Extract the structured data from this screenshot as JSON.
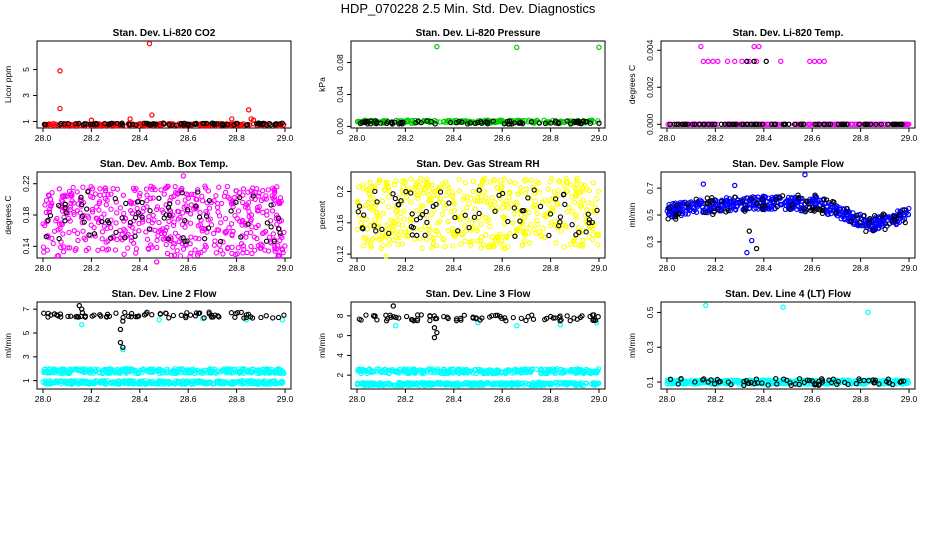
{
  "figure": {
    "title": "HDP_070228  2.5 Min. Std. Dev. Diagnostics"
  },
  "chart_data": [
    {
      "type": "scatter",
      "title": "Stan. Dev. Li-820 CO2",
      "ylabel": "Licor ppm",
      "xlim": [
        28.0,
        29.0
      ],
      "ylim": [
        0.5,
        7.2
      ],
      "xticks": [
        "28.0",
        "28.2",
        "28.4",
        "28.6",
        "28.8",
        "29.0"
      ],
      "yticks": [
        1,
        3,
        5
      ],
      "series": [
        {
          "name": "a",
          "color": "#ff0000",
          "base": 0.75,
          "spread": 0.1,
          "n": 230,
          "extra": [
            [
              28.07,
              4.9
            ],
            [
              28.07,
              2.0
            ],
            [
              28.44,
              7.0
            ],
            [
              28.45,
              1.5
            ],
            [
              28.2,
              1.1
            ],
            [
              28.36,
              1.2
            ],
            [
              28.78,
              1.2
            ],
            [
              28.85,
              1.9
            ],
            [
              28.86,
              1.2
            ],
            [
              28.87,
              1.1
            ]
          ]
        },
        {
          "name": "b",
          "color": "#000000",
          "base": 0.8,
          "spread": 0.08,
          "n": 90,
          "extra": []
        }
      ]
    },
    {
      "type": "scatter",
      "title": "Stan. Dev. Li-820 Pressure",
      "ylabel": "kPa",
      "xlim": [
        28.0,
        29.0
      ],
      "ylim": [
        -0.002,
        0.107
      ],
      "xticks": [
        "28.0",
        "28.2",
        "28.4",
        "28.6",
        "28.8",
        "29.0"
      ],
      "yticks": [
        0.0,
        0.04,
        0.08
      ],
      "series": [
        {
          "name": "a",
          "color": "#00cc00",
          "base": 0.006,
          "spread": 0.002,
          "n": 240,
          "extra": [
            [
              28.33,
              0.1
            ],
            [
              28.66,
              0.099
            ],
            [
              29.0,
              0.099
            ]
          ]
        },
        {
          "name": "b",
          "color": "#000000",
          "base": 0.005,
          "spread": 0.002,
          "n": 80,
          "extra": [
            [
              29.0,
              0.004
            ]
          ]
        }
      ]
    },
    {
      "type": "scatter",
      "title": "Stan. Dev. Li-820 Temp.",
      "ylabel": "degrees C",
      "xlim": [
        28.0,
        29.0
      ],
      "ylim": [
        -0.0002,
        0.0045
      ],
      "xticks": [
        "28.0",
        "28.2",
        "28.4",
        "28.6",
        "28.8",
        "29.0"
      ],
      "yticks": [
        0.0,
        0.002,
        0.004
      ],
      "series": [
        {
          "name": "a",
          "color": "#ff00ff",
          "base": 0.0,
          "spread": 0.0,
          "n": 160,
          "extra": [
            [
              28.14,
              0.0042
            ],
            [
              28.36,
              0.0042
            ],
            [
              28.38,
              0.0042
            ],
            [
              28.15,
              0.0034
            ],
            [
              28.17,
              0.0034
            ],
            [
              28.19,
              0.0034
            ],
            [
              28.21,
              0.0034
            ],
            [
              28.25,
              0.0034
            ],
            [
              28.28,
              0.0034
            ],
            [
              28.31,
              0.0034
            ],
            [
              28.34,
              0.0034
            ],
            [
              28.37,
              0.0034
            ],
            [
              28.47,
              0.0034
            ],
            [
              28.59,
              0.0034
            ],
            [
              28.61,
              0.0034
            ],
            [
              28.63,
              0.0034
            ],
            [
              28.65,
              0.0034
            ]
          ]
        },
        {
          "name": "b",
          "color": "#000000",
          "base": 0.0,
          "spread": 0.0,
          "n": 90,
          "extra": [
            [
              28.33,
              0.0034
            ],
            [
              28.41,
              0.0034
            ],
            [
              28.36,
              0.0034
            ]
          ]
        }
      ]
    },
    {
      "type": "scatter",
      "title": "Stan. Dev. Amb. Box Temp.",
      "ylabel": "degrees C",
      "xlim": [
        28.0,
        29.0
      ],
      "ylim": [
        0.125,
        0.235
      ],
      "xticks": [
        "28.0",
        "28.2",
        "28.4",
        "28.6",
        "28.8",
        "29.0"
      ],
      "yticks": [
        0.14,
        0.18,
        0.22
      ],
      "series": [
        {
          "name": "a",
          "color": "#ff00ff",
          "base": 0.172,
          "spread": 0.045,
          "n": 520,
          "extra": [
            [
              28.47,
              0.12
            ],
            [
              28.58,
              0.23
            ]
          ]
        },
        {
          "name": "b",
          "color": "#000000",
          "base": 0.178,
          "spread": 0.032,
          "n": 70,
          "extra": []
        }
      ]
    },
    {
      "type": "scatter",
      "title": "Stan. Dev. Gas Stream RH",
      "ylabel": "percent",
      "xlim": [
        28.0,
        29.0
      ],
      "ylim": [
        0.115,
        0.225
      ],
      "xticks": [
        "28.0",
        "28.2",
        "28.4",
        "28.6",
        "28.8",
        "29.0"
      ],
      "yticks": [
        0.12,
        0.16,
        0.2
      ],
      "series": [
        {
          "name": "a",
          "color": "#ffff00",
          "base": 0.172,
          "spread": 0.045,
          "n": 520,
          "extra": [
            [
              28.12,
              0.117
            ]
          ]
        },
        {
          "name": "b",
          "color": "#000000",
          "base": 0.172,
          "spread": 0.03,
          "n": 70,
          "extra": []
        }
      ]
    },
    {
      "type": "scatter",
      "title": "Stan. Dev. Sample Flow",
      "ylabel": "ml/min",
      "xlim": [
        28.0,
        29.0
      ],
      "ylim": [
        0.18,
        0.82
      ],
      "xticks": [
        "28.0",
        "28.2",
        "28.4",
        "28.6",
        "28.8",
        "29.0"
      ],
      "yticks": [
        0.3,
        0.5,
        0.7
      ],
      "trend": "flow",
      "series": [
        {
          "name": "a",
          "color": "#0000ff",
          "base": 0.0,
          "spread": 0.05,
          "n": 520,
          "extra": [
            [
              28.15,
              0.73
            ],
            [
              28.28,
              0.72
            ],
            [
              28.33,
              0.22
            ],
            [
              28.57,
              0.8
            ],
            [
              28.35,
              0.31
            ]
          ]
        },
        {
          "name": "b",
          "color": "#000000",
          "base": 0.0,
          "spread": 0.07,
          "n": 80,
          "extra": [
            [
              28.34,
              0.38
            ],
            [
              28.37,
              0.25
            ]
          ]
        }
      ]
    },
    {
      "type": "scatter",
      "title": "Stan. Dev. Line 2 Flow",
      "ylabel": "ml/min",
      "xlim": [
        28.0,
        29.0
      ],
      "ylim": [
        0.3,
        7.6
      ],
      "xticks": [
        "28.0",
        "28.2",
        "28.4",
        "28.6",
        "28.8",
        "29.0"
      ],
      "yticks": [
        1,
        3,
        5,
        7
      ],
      "series": [
        {
          "name": "a",
          "color": "#00ffff",
          "base": 1.8,
          "spread": 0.2,
          "n": 340,
          "extra": [
            [
              28.33,
              3.6
            ],
            [
              28.16,
              5.7
            ],
            [
              28.66,
              6.2
            ],
            [
              28.84,
              6.1
            ],
            [
              28.99,
              6.1
            ],
            [
              28.48,
              6.1
            ]
          ]
        },
        {
          "name": "c",
          "color": "#00ffff",
          "base": 0.85,
          "spread": 0.15,
          "n": 340,
          "extra": []
        },
        {
          "name": "b",
          "color": "#000000",
          "base": 6.5,
          "spread": 0.25,
          "n": 80,
          "extra": [
            [
              28.32,
              4.2
            ],
            [
              28.33,
              3.8
            ],
            [
              28.32,
              5.3
            ],
            [
              28.33,
              6.0
            ],
            [
              28.15,
              7.3
            ],
            [
              28.16,
              7.0
            ]
          ]
        }
      ]
    },
    {
      "type": "scatter",
      "title": "Stan. Dev. Line 3 Flow",
      "ylabel": "ml/min",
      "xlim": [
        28.0,
        29.0
      ],
      "ylim": [
        0.6,
        9.4
      ],
      "xticks": [
        "28.0",
        "28.2",
        "28.4",
        "28.6",
        "28.8",
        "29.0"
      ],
      "yticks": [
        2,
        4,
        6,
        8
      ],
      "series": [
        {
          "name": "a",
          "color": "#00ffff",
          "base": 2.4,
          "spread": 0.25,
          "n": 340,
          "extra": [
            [
              28.16,
              7.0
            ],
            [
              28.5,
              7.3
            ],
            [
              28.66,
              7.0
            ],
            [
              28.84,
              7.1
            ],
            [
              28.99,
              7.3
            ],
            [
              28.75,
              1.3
            ]
          ]
        },
        {
          "name": "c",
          "color": "#00ffff",
          "base": 1.1,
          "spread": 0.15,
          "n": 340,
          "extra": []
        },
        {
          "name": "b",
          "color": "#000000",
          "base": 7.8,
          "spread": 0.3,
          "n": 80,
          "extra": [
            [
              28.15,
              9.0
            ],
            [
              28.32,
              5.8
            ],
            [
              28.33,
              6.3
            ],
            [
              28.32,
              6.8
            ]
          ]
        }
      ]
    },
    {
      "type": "scatter",
      "title": "Stan. Dev. Line 4 (LT) Flow",
      "ylabel": "ml/min",
      "xlim": [
        28.0,
        29.0
      ],
      "ylim": [
        0.06,
        0.56
      ],
      "xticks": [
        "28.0",
        "28.2",
        "28.4",
        "28.6",
        "28.8",
        "29.0"
      ],
      "yticks": [
        0.1,
        0.3,
        0.5
      ],
      "series": [
        {
          "name": "a",
          "color": "#00ffff",
          "base": 0.1,
          "spread": 0.012,
          "n": 420,
          "extra": [
            [
              28.16,
              0.54
            ],
            [
              28.48,
              0.53
            ],
            [
              28.83,
              0.5
            ]
          ]
        },
        {
          "name": "b",
          "color": "#000000",
          "base": 0.1,
          "spread": 0.02,
          "n": 75,
          "extra": []
        }
      ]
    }
  ]
}
